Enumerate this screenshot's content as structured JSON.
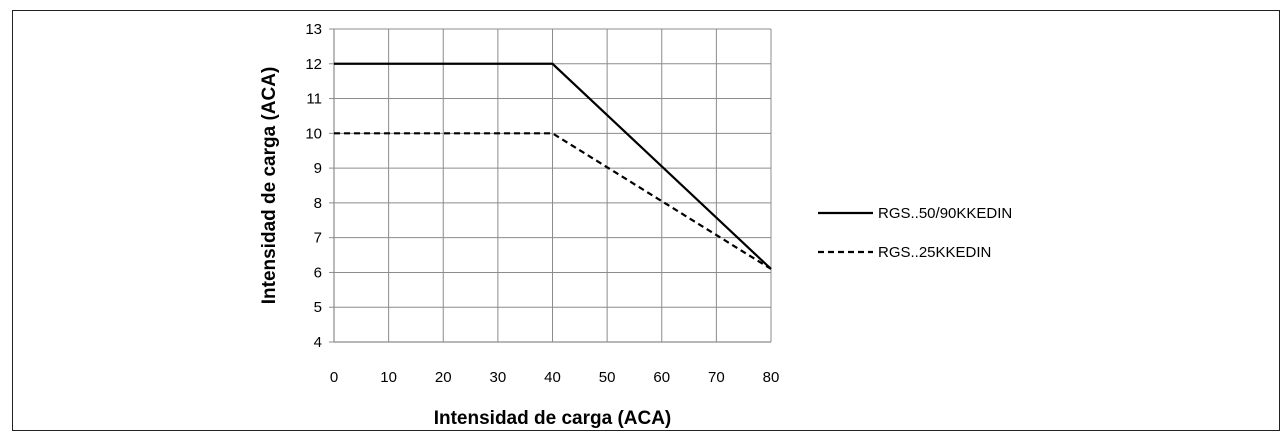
{
  "chart_data": {
    "type": "line",
    "title": "",
    "xlabel": "Intensidad de carga (ACA)",
    "ylabel": "Intensidad de carga (ACA)",
    "xlim": [
      0,
      80
    ],
    "ylim": [
      4,
      13
    ],
    "xticks": [
      0,
      10,
      20,
      30,
      40,
      50,
      60,
      70,
      80
    ],
    "yticks": [
      4,
      5,
      6,
      7,
      8,
      9,
      10,
      11,
      12,
      13
    ],
    "grid": true,
    "legend_position": "right",
    "series": [
      {
        "name": "RGS..50/90KKEDIN",
        "style": "solid",
        "color": "#000000",
        "points": [
          [
            0,
            12
          ],
          [
            40,
            12
          ],
          [
            80,
            6.1
          ]
        ]
      },
      {
        "name": "RGS..25KKEDIN",
        "style": "dashed",
        "color": "#000000",
        "points": [
          [
            0,
            10
          ],
          [
            40,
            10
          ],
          [
            80,
            6.1
          ]
        ]
      }
    ]
  }
}
